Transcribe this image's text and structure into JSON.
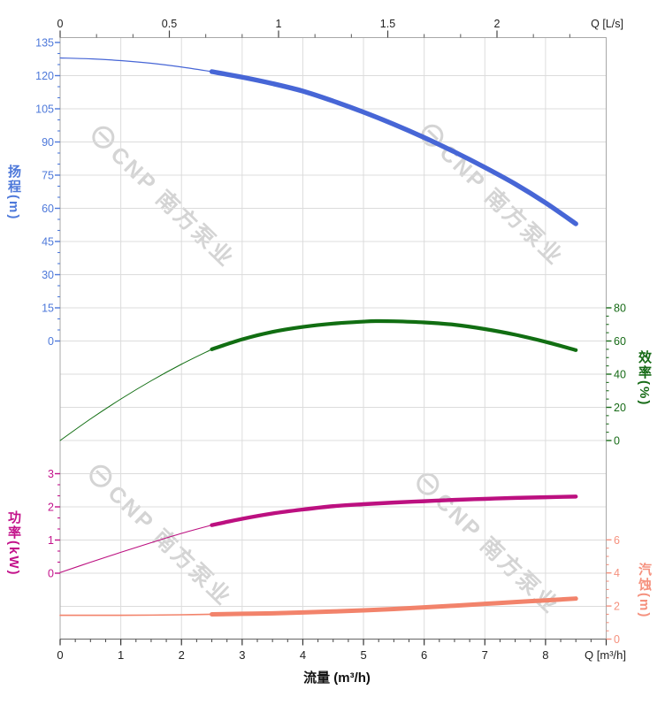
{
  "watermark": {
    "text": "CNP 南方泵业"
  },
  "chart_data": {
    "type": "line",
    "title": "",
    "grid": true,
    "x_bottom": {
      "label": "流量 (m³/h)",
      "unit": "Q [m³/h]",
      "range": [
        0,
        9
      ],
      "major_step": 1,
      "minor_step": 0.25,
      "ticks": [
        [
          0,
          "0"
        ],
        [
          1,
          "1"
        ],
        [
          2,
          "2"
        ],
        [
          3,
          "3"
        ],
        [
          4,
          "4"
        ],
        [
          5,
          "5"
        ],
        [
          6,
          "6"
        ],
        [
          7,
          "7"
        ],
        [
          8,
          "8"
        ],
        [
          9,
          ""
        ]
      ]
    },
    "x_top": {
      "unit": "Q [L/s]",
      "range": [
        0,
        2.5
      ],
      "major_step": 0.5,
      "minor_step": 0.1666667,
      "ticks": [
        [
          0,
          "0"
        ],
        [
          0.5,
          "0.5"
        ],
        [
          1,
          "1"
        ],
        [
          1.5,
          "1.5"
        ],
        [
          2,
          "2"
        ]
      ]
    },
    "y_axes": {
      "head": {
        "label": "扬程(m)",
        "unit": "m",
        "side": "left",
        "range": [
          0,
          135
        ],
        "major_step": 15,
        "minor_step": 5,
        "color": "#4e79da",
        "ticks": [
          [
            135,
            "135"
          ],
          [
            120,
            "120"
          ],
          [
            105,
            "105"
          ],
          [
            90,
            "90"
          ],
          [
            75,
            "75"
          ],
          [
            60,
            "60"
          ],
          [
            45,
            "45"
          ],
          [
            30,
            "30"
          ],
          [
            15,
            "15"
          ],
          [
            0,
            "0"
          ]
        ]
      },
      "power": {
        "label": "功率(kW)",
        "unit": "kW",
        "side": "left",
        "range": [
          0,
          3
        ],
        "major_step": 1,
        "minor_step": 0.3333333,
        "color": "#c3138b",
        "ticks": [
          [
            3,
            "3"
          ],
          [
            2,
            "2"
          ],
          [
            1,
            "1"
          ],
          [
            0,
            "0"
          ]
        ]
      },
      "efficiency": {
        "label": "效率(%)",
        "unit": "%",
        "side": "right",
        "range": [
          0,
          80
        ],
        "major_step": 20,
        "minor_step": 5,
        "color": "#176b17",
        "ticks": [
          [
            80,
            "80"
          ],
          [
            60,
            "60"
          ],
          [
            40,
            "40"
          ],
          [
            20,
            "20"
          ],
          [
            0,
            "0"
          ]
        ]
      },
      "npsh": {
        "label": "汽蚀(m)",
        "unit": "m",
        "side": "right",
        "range": [
          0,
          6
        ],
        "major_step": 2,
        "minor_step": 0.5,
        "color": "#f5917e",
        "ticks": [
          [
            6,
            "6"
          ],
          [
            4,
            "4"
          ],
          [
            2,
            "2"
          ],
          [
            0,
            "0"
          ]
        ]
      }
    },
    "series": [
      {
        "name": "head",
        "axis": "head",
        "color": "#4766d6",
        "thin_width": 1.2,
        "thick_width": 5.4,
        "split_at": 2.5,
        "points": [
          [
            0,
            128
          ],
          [
            0.5,
            127.6
          ],
          [
            1,
            126.8
          ],
          [
            1.5,
            125.6
          ],
          [
            2,
            123.9
          ],
          [
            2.5,
            121.8
          ],
          [
            3,
            119.3
          ],
          [
            3.5,
            116.4
          ],
          [
            4,
            113
          ],
          [
            4.5,
            108.5
          ],
          [
            5,
            103.5
          ],
          [
            5.5,
            98
          ],
          [
            6,
            92
          ],
          [
            6.5,
            85.5
          ],
          [
            7,
            78.5
          ],
          [
            7.5,
            71
          ],
          [
            8,
            62.5
          ],
          [
            8.5,
            53
          ]
        ]
      },
      {
        "name": "efficiency",
        "axis": "efficiency",
        "color": "#116e12",
        "thin_width": 1.0,
        "thick_width": 4.2,
        "split_at": 2.5,
        "points": [
          [
            0,
            0
          ],
          [
            0.5,
            13
          ],
          [
            1,
            25
          ],
          [
            1.5,
            36
          ],
          [
            2,
            46
          ],
          [
            2.5,
            55
          ],
          [
            3,
            61
          ],
          [
            3.5,
            65.5
          ],
          [
            4,
            68.5
          ],
          [
            4.5,
            70.5
          ],
          [
            5,
            71.7
          ],
          [
            5.2,
            72
          ],
          [
            5.5,
            71.9
          ],
          [
            6,
            71.2
          ],
          [
            6.5,
            69.8
          ],
          [
            7,
            67.2
          ],
          [
            7.5,
            63.8
          ],
          [
            8,
            59.5
          ],
          [
            8.5,
            54.5
          ]
        ]
      },
      {
        "name": "power",
        "axis": "power",
        "color": "#bc1080",
        "thin_width": 1.1,
        "thick_width": 4.4,
        "split_at": 2.5,
        "points": [
          [
            0,
            0.02
          ],
          [
            0.5,
            0.33
          ],
          [
            1,
            0.63
          ],
          [
            1.5,
            0.92
          ],
          [
            2,
            1.2
          ],
          [
            2.5,
            1.45
          ],
          [
            3,
            1.64
          ],
          [
            3.5,
            1.8
          ],
          [
            4,
            1.92
          ],
          [
            4.5,
            2.02
          ],
          [
            5,
            2.08
          ],
          [
            5.5,
            2.13
          ],
          [
            6,
            2.17
          ],
          [
            6.5,
            2.21
          ],
          [
            7,
            2.24
          ],
          [
            7.5,
            2.27
          ],
          [
            8,
            2.29
          ],
          [
            8.5,
            2.31
          ]
        ]
      },
      {
        "name": "npsh",
        "axis": "npsh",
        "color": "#f2836b",
        "thin_width": 1.6,
        "thick_width": 5.0,
        "split_at": 2.5,
        "points": [
          [
            0,
            1.44
          ],
          [
            0.5,
            1.44
          ],
          [
            1,
            1.44
          ],
          [
            1.5,
            1.45
          ],
          [
            2,
            1.47
          ],
          [
            2.5,
            1.5
          ],
          [
            3,
            1.53
          ],
          [
            3.5,
            1.56
          ],
          [
            4,
            1.61
          ],
          [
            4.5,
            1.67
          ],
          [
            5,
            1.74
          ],
          [
            5.5,
            1.82
          ],
          [
            6,
            1.92
          ],
          [
            6.5,
            2.02
          ],
          [
            7,
            2.13
          ],
          [
            7.5,
            2.24
          ],
          [
            8,
            2.34
          ],
          [
            8.5,
            2.45
          ]
        ]
      }
    ]
  }
}
